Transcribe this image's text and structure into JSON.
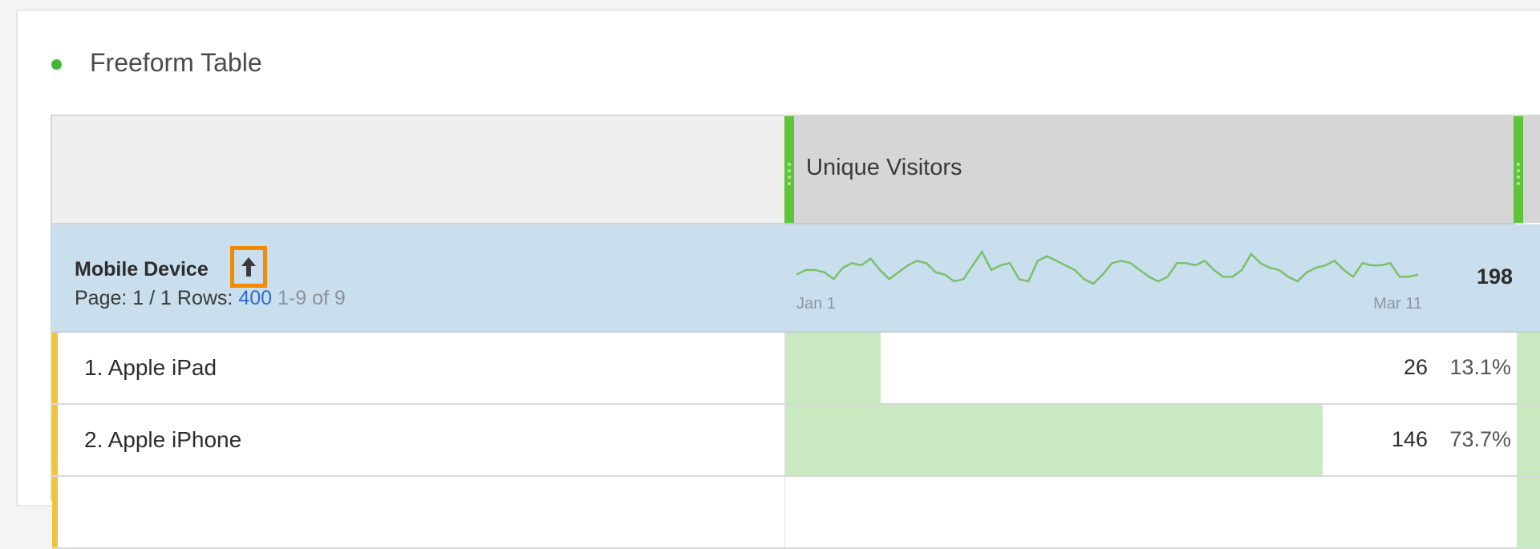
{
  "panel": {
    "title": "Freeform Table",
    "status_color": "#44b836"
  },
  "table": {
    "column_header": "Unique Visitors",
    "dimension": {
      "name": "Mobile Device",
      "sort_icon": "arrow-up-icon"
    },
    "pager": {
      "page_label": "Page: 1 / 1",
      "rows_label": "Rows:",
      "rows_value": "400",
      "range": "1-9 of 9"
    },
    "summary": {
      "total": "198",
      "sparkline": {
        "start_label": "Jan 1",
        "end_label": "Mar 11",
        "values": [
          10,
          12,
          12,
          11,
          8,
          13,
          15,
          14,
          17,
          12,
          8,
          11,
          14,
          16,
          15,
          11,
          10,
          7,
          8,
          14,
          20,
          12,
          14,
          15,
          8,
          7,
          16,
          18,
          16,
          14,
          12,
          8,
          6,
          10,
          15,
          16,
          15,
          12,
          9,
          7,
          9,
          15,
          15,
          14,
          16,
          12,
          9,
          9,
          12,
          19,
          15,
          13,
          12,
          9,
          7,
          11,
          13,
          14,
          16,
          12,
          9,
          15,
          14,
          14,
          15,
          9,
          9,
          10
        ],
        "color": "#7cc06b"
      }
    },
    "rows": [
      {
        "rank": "1.",
        "name": "Apple iPad",
        "value": "26",
        "percent": "13.1%",
        "share": 0.131
      },
      {
        "rank": "2.",
        "name": "Apple iPhone",
        "value": "146",
        "percent": "73.7%",
        "share": 0.737
      }
    ],
    "accent_color": "#5ec43a",
    "bar_color": "#c9eac0"
  }
}
